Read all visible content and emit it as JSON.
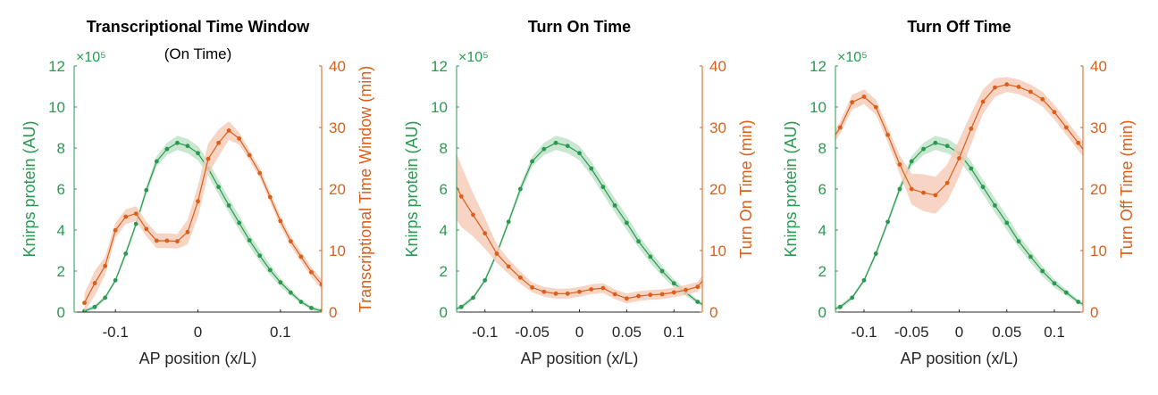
{
  "colors": {
    "protein": "#2a9950",
    "time": "#d95f1a",
    "protein_band": "#bfe3c9",
    "time_band": "#f6cdb8",
    "axis": "#262626"
  },
  "chart_data": [
    {
      "type": "line",
      "title": "Transcriptional Time Window",
      "subtitle": "(On Time)",
      "xlabel": "AP position (x/L)",
      "ylabel_left": "Knirps protein (AU)",
      "ylabel_right": "Transcriptional Time Window (min)",
      "y_exponent": "×10⁵",
      "xlim": [
        -0.15,
        0.15
      ],
      "ylim_left": [
        0,
        12
      ],
      "ylim_right": [
        0,
        40
      ],
      "x_ticks": [
        -0.1,
        0,
        0.1
      ],
      "x_tick_labels": [
        "-0.1",
        "0",
        "0.1"
      ],
      "y_ticks_left": [
        0,
        2,
        4,
        6,
        8,
        10,
        12
      ],
      "y_tick_labels_left": [
        "0",
        "2",
        "4",
        "6",
        "8",
        "10",
        "12"
      ],
      "y_ticks_right": [
        0,
        10,
        20,
        30,
        40
      ],
      "y_tick_labels_right": [
        "0",
        "10",
        "20",
        "30",
        "40"
      ],
      "series": [
        {
          "axis": "left",
          "x": [
            -0.1375,
            -0.125,
            -0.1125,
            -0.1,
            -0.0875,
            -0.075,
            -0.0625,
            -0.05,
            -0.0375,
            -0.025,
            -0.0125,
            0,
            0.0125,
            0.025,
            0.0375,
            0.05,
            0.0625,
            0.075,
            0.0875,
            0.1,
            0.1125,
            0.125,
            0.1375,
            0.15
          ],
          "y": [
            0.05,
            0.25,
            0.7,
            1.55,
            2.85,
            4.3,
            5.95,
            7.35,
            7.95,
            8.25,
            8.1,
            7.75,
            7.0,
            6.1,
            5.2,
            4.35,
            3.5,
            2.75,
            2.05,
            1.45,
            0.95,
            0.5,
            0.2,
            0.05
          ],
          "band": [
            0.1,
            0.1,
            0.1,
            0.1,
            0.15,
            0.15,
            0.2,
            0.25,
            0.3,
            0.35,
            0.35,
            0.35,
            0.35,
            0.35,
            0.35,
            0.35,
            0.3,
            0.3,
            0.25,
            0.2,
            0.15,
            0.1,
            0.1,
            0.1
          ]
        },
        {
          "axis": "right",
          "x": [
            -0.1375,
            -0.125,
            -0.1125,
            -0.1,
            -0.0875,
            -0.075,
            -0.0625,
            -0.05,
            -0.0375,
            -0.025,
            -0.0125,
            0,
            0.0125,
            0.025,
            0.0375,
            0.05,
            0.0625,
            0.075,
            0.0875,
            0.1,
            0.1125,
            0.125,
            0.1375,
            0.15
          ],
          "y": [
            1.5,
            4.7,
            7.5,
            13.3,
            15.5,
            16.0,
            13.5,
            11.6,
            11.6,
            11.5,
            13.0,
            18.0,
            24.9,
            27.5,
            29.5,
            28.2,
            25.5,
            22.6,
            18.7,
            14.8,
            11.5,
            9.0,
            6.5,
            4.5
          ],
          "band": [
            1.5,
            2.0,
            1.5,
            1.2,
            1.2,
            1.2,
            1.2,
            1.2,
            1.2,
            1.2,
            2.0,
            2.5,
            2.5,
            2.2,
            1.5,
            1.0,
            0.8,
            0.8,
            0.8,
            0.8,
            0.8,
            0.8,
            0.8,
            0.8
          ]
        }
      ]
    },
    {
      "type": "line",
      "title": "Turn On Time",
      "subtitle": "",
      "xlabel": "AP position (x/L)",
      "ylabel_left": "Knirps protein (AU)",
      "ylabel_right": "Turn On Time (min)",
      "y_exponent": "×10⁵",
      "xlim": [
        -0.13,
        0.13
      ],
      "ylim_left": [
        0,
        12
      ],
      "ylim_right": [
        0,
        40
      ],
      "x_ticks": [
        -0.1,
        -0.05,
        0,
        0.05,
        0.1
      ],
      "x_tick_labels": [
        "-0.1",
        "-0.05",
        "0",
        "0.05",
        "0.1"
      ],
      "y_ticks_left": [
        0,
        2,
        4,
        6,
        8,
        10,
        12
      ],
      "y_tick_labels_left": [
        "0",
        "2",
        "4",
        "6",
        "8",
        "10",
        "12"
      ],
      "y_ticks_right": [
        0,
        10,
        20,
        30,
        40
      ],
      "y_tick_labels_right": [
        "0",
        "10",
        "20",
        "30",
        "40"
      ],
      "series": [
        {
          "axis": "left",
          "x": [
            -0.1375,
            -0.125,
            -0.1125,
            -0.1,
            -0.0875,
            -0.075,
            -0.0625,
            -0.05,
            -0.0375,
            -0.025,
            -0.0125,
            0,
            0.0125,
            0.025,
            0.0375,
            0.05,
            0.0625,
            0.075,
            0.0875,
            0.1,
            0.1125,
            0.125,
            0.1375
          ],
          "y": [
            0.05,
            0.25,
            0.7,
            1.55,
            2.85,
            4.4,
            6.0,
            7.35,
            7.95,
            8.25,
            8.1,
            7.75,
            7.0,
            6.1,
            5.2,
            4.35,
            3.45,
            2.7,
            2.0,
            1.4,
            0.95,
            0.5,
            0.2
          ],
          "band": [
            0.1,
            0.1,
            0.1,
            0.1,
            0.15,
            0.15,
            0.2,
            0.25,
            0.3,
            0.35,
            0.35,
            0.35,
            0.35,
            0.35,
            0.35,
            0.35,
            0.3,
            0.3,
            0.25,
            0.2,
            0.15,
            0.1,
            0.1
          ]
        },
        {
          "axis": "right",
          "x": [
            -0.1375,
            -0.125,
            -0.1125,
            -0.1,
            -0.0875,
            -0.075,
            -0.0625,
            -0.05,
            -0.0375,
            -0.025,
            -0.0125,
            0,
            0.0125,
            0.025,
            0.0375,
            0.05,
            0.0625,
            0.075,
            0.0875,
            0.1,
            0.1125,
            0.125,
            0.1375
          ],
          "y": [
            22.8,
            18.8,
            15.8,
            12.8,
            9.5,
            7.4,
            5.6,
            4.0,
            3.3,
            3.0,
            3.0,
            3.3,
            3.7,
            3.9,
            2.9,
            2.2,
            2.6,
            2.8,
            2.9,
            3.2,
            3.6,
            4.1,
            6.5
          ],
          "band": [
            6.0,
            5.0,
            3.5,
            2.5,
            1.5,
            1.2,
            1.0,
            0.8,
            0.8,
            0.8,
            0.8,
            0.8,
            0.8,
            0.8,
            0.8,
            0.8,
            0.8,
            0.8,
            0.8,
            0.8,
            0.8,
            0.8,
            1.0
          ]
        }
      ]
    },
    {
      "type": "line",
      "title": "Turn Off Time",
      "subtitle": "",
      "xlabel": "AP position (x/L)",
      "ylabel_left": "Knirps protein (AU)",
      "ylabel_right": "Turn Off Time (min)",
      "y_exponent": "×10⁵",
      "xlim": [
        -0.13,
        0.13
      ],
      "ylim_left": [
        0,
        12
      ],
      "ylim_right": [
        0,
        40
      ],
      "x_ticks": [
        -0.1,
        -0.05,
        0,
        0.05,
        0.1
      ],
      "x_tick_labels": [
        "-0.1",
        "-0.05",
        "0",
        "0.05",
        "0.1"
      ],
      "y_ticks_left": [
        0,
        2,
        4,
        6,
        8,
        10,
        12
      ],
      "y_tick_labels_left": [
        "0",
        "2",
        "4",
        "6",
        "8",
        "10",
        "12"
      ],
      "y_ticks_right": [
        0,
        10,
        20,
        30,
        40
      ],
      "y_tick_labels_right": [
        "0",
        "10",
        "20",
        "30",
        "40"
      ],
      "series": [
        {
          "axis": "left",
          "x": [
            -0.1375,
            -0.125,
            -0.1125,
            -0.1,
            -0.0875,
            -0.075,
            -0.0625,
            -0.05,
            -0.0375,
            -0.025,
            -0.0125,
            0,
            0.0125,
            0.025,
            0.0375,
            0.05,
            0.0625,
            0.075,
            0.0875,
            0.1,
            0.1125,
            0.125,
            0.1375
          ],
          "y": [
            0.05,
            0.25,
            0.7,
            1.55,
            2.85,
            4.4,
            6.0,
            7.35,
            7.95,
            8.25,
            8.1,
            7.75,
            7.0,
            6.1,
            5.2,
            4.35,
            3.45,
            2.7,
            2.0,
            1.4,
            0.95,
            0.5,
            0.2
          ],
          "band": [
            0.1,
            0.1,
            0.1,
            0.1,
            0.15,
            0.15,
            0.2,
            0.25,
            0.3,
            0.35,
            0.35,
            0.35,
            0.35,
            0.35,
            0.35,
            0.35,
            0.3,
            0.3,
            0.25,
            0.2,
            0.15,
            0.1,
            0.1
          ]
        },
        {
          "axis": "right",
          "x": [
            -0.1375,
            -0.125,
            -0.1125,
            -0.1,
            -0.0875,
            -0.075,
            -0.0625,
            -0.05,
            -0.0375,
            -0.025,
            -0.0125,
            0,
            0.0125,
            0.025,
            0.0375,
            0.05,
            0.0625,
            0.075,
            0.0875,
            0.1,
            0.1125,
            0.125,
            0.1375
          ],
          "y": [
            27.0,
            30.0,
            34.1,
            35.0,
            33.3,
            28.8,
            24.0,
            20.0,
            19.4,
            19.0,
            21.0,
            25.0,
            29.8,
            34.2,
            36.5,
            37.0,
            36.6,
            35.8,
            34.6,
            32.5,
            30.0,
            27.5,
            25.0
          ],
          "band": [
            1.0,
            1.0,
            1.2,
            1.2,
            1.2,
            1.2,
            1.5,
            2.5,
            3.0,
            3.0,
            3.0,
            3.0,
            2.5,
            2.0,
            1.5,
            1.2,
            1.2,
            1.2,
            1.2,
            1.2,
            1.2,
            1.2,
            1.2
          ]
        }
      ]
    }
  ]
}
